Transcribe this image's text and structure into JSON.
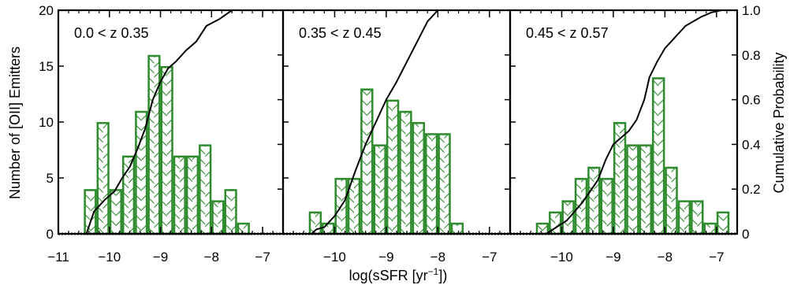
{
  "chart_data": {
    "type": "bar",
    "xlabel_html": [
      "log(sSFR [yr",
      "−1",
      "])"
    ],
    "ylabel_left": "Number of [OII] Emitters",
    "ylabel_right": "Cumulative Probability",
    "xlim": [
      -11,
      -6.6
    ],
    "ylim_left": [
      0,
      20
    ],
    "ylim_right": [
      0,
      1.0
    ],
    "xticks": [
      -11,
      -10,
      -9,
      -8,
      -7
    ],
    "yticks_left": [
      0,
      5,
      10,
      15,
      20
    ],
    "yticks_right": [
      0,
      0.2,
      0.4,
      0.6,
      0.8,
      1.0
    ],
    "ytick_labels_right": [
      "0",
      "0.2",
      "0.4",
      "0.6",
      "0.8",
      "1.0"
    ],
    "bar_color": "#2e8b2e",
    "line_color": "#000000",
    "bin_width": 0.25,
    "panels": [
      {
        "label": "0.0 < z 0.35",
        "bins": [
          {
            "x0": -10.5,
            "count": 4
          },
          {
            "x0": -10.25,
            "count": 10
          },
          {
            "x0": -10.0,
            "count": 4
          },
          {
            "x0": -9.75,
            "count": 7
          },
          {
            "x0": -9.5,
            "count": 11
          },
          {
            "x0": -9.25,
            "count": 16
          },
          {
            "x0": -9.0,
            "count": 15
          },
          {
            "x0": -8.75,
            "count": 7
          },
          {
            "x0": -8.5,
            "count": 7
          },
          {
            "x0": -8.25,
            "count": 8
          },
          {
            "x0": -8.0,
            "count": 3
          },
          {
            "x0": -7.75,
            "count": 4
          },
          {
            "x0": -7.5,
            "count": 1
          }
        ],
        "cumulative": {
          "x": [
            -10.45,
            -10.3,
            -10.1,
            -9.9,
            -9.75,
            -9.6,
            -9.45,
            -9.3,
            -9.15,
            -9.0,
            -8.85,
            -8.7,
            -8.5,
            -8.3,
            -8.1,
            -7.85,
            -7.6,
            -7.4
          ],
          "y": [
            0.0,
            0.1,
            0.15,
            0.19,
            0.25,
            0.3,
            0.38,
            0.47,
            0.6,
            0.68,
            0.74,
            0.77,
            0.82,
            0.86,
            0.93,
            0.96,
            1.0,
            1.0
          ]
        }
      },
      {
        "label": "0.35 < z 0.45",
        "bins": [
          {
            "x0": -10.5,
            "count": 2
          },
          {
            "x0": -10.25,
            "count": 1
          },
          {
            "x0": -10.0,
            "count": 5
          },
          {
            "x0": -9.75,
            "count": 5
          },
          {
            "x0": -9.5,
            "count": 13
          },
          {
            "x0": -9.25,
            "count": 8
          },
          {
            "x0": -9.0,
            "count": 12
          },
          {
            "x0": -8.75,
            "count": 11
          },
          {
            "x0": -8.5,
            "count": 10
          },
          {
            "x0": -8.25,
            "count": 9
          },
          {
            "x0": -8.0,
            "count": 9
          },
          {
            "x0": -7.75,
            "count": 1
          }
        ],
        "cumulative": {
          "x": [
            -10.45,
            -10.35,
            -10.2,
            -10.0,
            -9.8,
            -9.6,
            -9.4,
            -9.2,
            -9.0,
            -8.8,
            -8.6,
            -8.4,
            -8.2,
            -8.0,
            -7.85
          ],
          "y": [
            0.0,
            0.02,
            0.03,
            0.08,
            0.15,
            0.28,
            0.4,
            0.5,
            0.6,
            0.68,
            0.77,
            0.86,
            0.95,
            1.0,
            1.0
          ]
        }
      },
      {
        "label": "0.45 < z 0.57",
        "bins": [
          {
            "x0": -10.5,
            "count": 1
          },
          {
            "x0": -10.25,
            "count": 2
          },
          {
            "x0": -10.0,
            "count": 3
          },
          {
            "x0": -9.75,
            "count": 5
          },
          {
            "x0": -9.5,
            "count": 6
          },
          {
            "x0": -9.25,
            "count": 5
          },
          {
            "x0": -9.0,
            "count": 10
          },
          {
            "x0": -8.75,
            "count": 8
          },
          {
            "x0": -8.5,
            "count": 8
          },
          {
            "x0": -8.25,
            "count": 14
          },
          {
            "x0": -8.0,
            "count": 6
          },
          {
            "x0": -7.75,
            "count": 3
          },
          {
            "x0": -7.5,
            "count": 3
          },
          {
            "x0": -7.25,
            "count": 1
          },
          {
            "x0": -7.0,
            "count": 2
          }
        ],
        "cumulative": {
          "x": [
            -10.3,
            -10.1,
            -9.9,
            -9.75,
            -9.6,
            -9.45,
            -9.3,
            -9.15,
            -9.0,
            -8.85,
            -8.7,
            -8.55,
            -8.4,
            -8.3,
            -8.15,
            -8.0,
            -7.8,
            -7.6,
            -7.3,
            -7.1,
            -6.9
          ],
          "y": [
            0.0,
            0.03,
            0.06,
            0.1,
            0.14,
            0.19,
            0.24,
            0.33,
            0.4,
            0.43,
            0.46,
            0.51,
            0.6,
            0.7,
            0.77,
            0.83,
            0.88,
            0.93,
            0.97,
            0.99,
            1.0
          ]
        }
      }
    ]
  }
}
